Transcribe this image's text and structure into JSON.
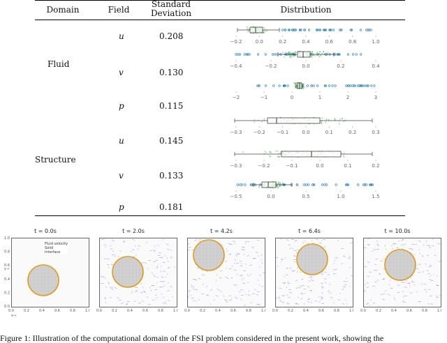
{
  "table": {
    "headers": {
      "domain": "Domain",
      "field": "Field",
      "std_line1": "Standard",
      "std_line2": "Deviation",
      "dist": "Distribution"
    },
    "groups": [
      {
        "name": "Fluid",
        "rows": [
          {
            "field": "u",
            "std": "0.208",
            "ticks": [
              "−0.2",
              "0.0",
              "0.2",
              "0.4",
              "0.6",
              "0.8",
              "1.0"
            ]
          },
          {
            "field": "v",
            "std": "0.130",
            "ticks": [
              "−0.4",
              "−0.2",
              "0.0",
              "0.2",
              "0.4"
            ]
          },
          {
            "field": "p",
            "std": "0.115",
            "ticks": [
              "−2",
              "−1",
              "0",
              "1",
              "2",
              "3"
            ]
          }
        ]
      },
      {
        "name": "Structure",
        "rows": [
          {
            "field": "u",
            "std": "0.145",
            "ticks": [
              "−0.3",
              "−0.2",
              "−0.1",
              "0.0",
              "0.1",
              "0.2",
              "0.3"
            ]
          },
          {
            "field": "v",
            "std": "0.133",
            "ticks": [
              "−0.3",
              "−0.2",
              "−0.1",
              "0.0",
              "0.1",
              "0.2"
            ]
          },
          {
            "field": "p",
            "std": "0.181",
            "ticks": [
              "−0.5",
              "0.0",
              "0.5",
              "1.0",
              "1.5"
            ]
          }
        ]
      }
    ]
  },
  "panels": [
    {
      "title": "t = 0.0s"
    },
    {
      "title": "t = 2.0s"
    },
    {
      "title": "t = 4.2s"
    },
    {
      "title": "t = 6.4s"
    },
    {
      "title": "t = 10.0s"
    }
  ],
  "axes": {
    "ylabel": "y→",
    "xlabel": "x→",
    "ticks": [
      "0.0",
      "0.2",
      "0.4",
      "0.6",
      "0.8",
      "1.0"
    ]
  },
  "legend": [
    "Fluid velocity",
    "Solid",
    "Interface"
  ],
  "caption": "Figure 1: Illustration of the computational domain of the FSI problem considered in the present work, showing the",
  "colors": {
    "strip": "#4caf50",
    "box": "#ffffff",
    "outlier": "#1f77b4",
    "interface": "#e39b1f",
    "solid": "#bdbdbd",
    "velocity": "#6a5acd"
  }
}
